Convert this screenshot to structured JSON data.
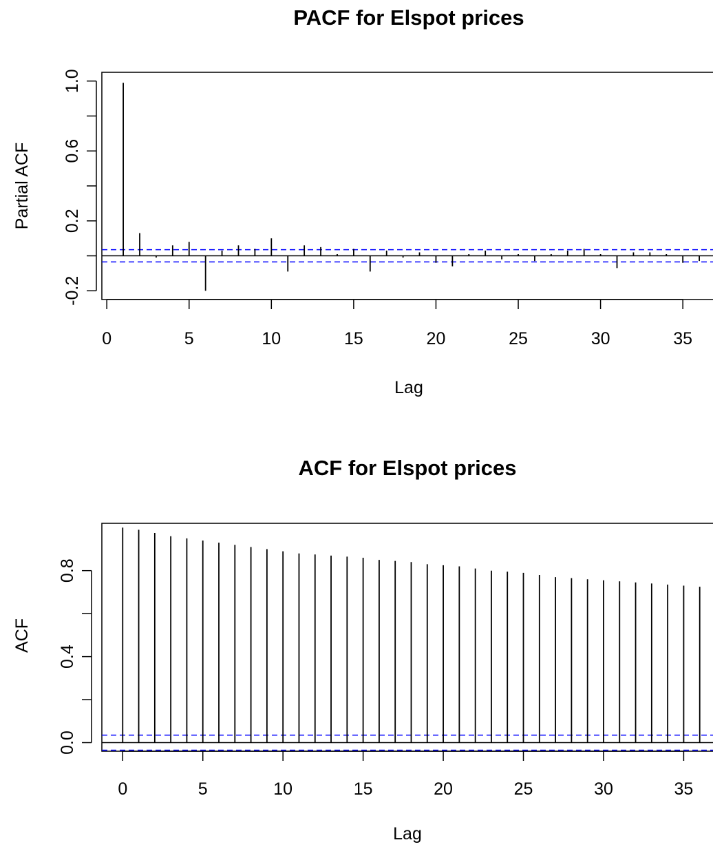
{
  "charts": {
    "pacf": {
      "title": "PACF for Elspot prices",
      "xlabel": "Lag",
      "ylabel": "Partial ACF",
      "x_ticks": [
        "0",
        "5",
        "10",
        "15",
        "20",
        "25",
        "30",
        "35"
      ],
      "y_ticks": [
        "-0.2",
        "0.2",
        "0.6",
        "1.0"
      ]
    },
    "acf": {
      "title": "ACF for Elspot prices",
      "xlabel": "Lag",
      "ylabel": "ACF",
      "x_ticks": [
        "0",
        "5",
        "10",
        "15",
        "20",
        "25",
        "30",
        "35"
      ],
      "y_ticks": [
        "0.0",
        "0.4",
        "0.8"
      ]
    }
  },
  "chart_data": [
    {
      "type": "bar",
      "style": "vertical spikes (R acf plot)",
      "title": "PACF for Elspot prices",
      "xlabel": "Lag",
      "ylabel": "Partial ACF",
      "xlim": [
        -0.3,
        37
      ],
      "ylim": [
        -0.25,
        1.05
      ],
      "x_ticks": [
        0,
        5,
        10,
        15,
        20,
        25,
        30,
        35
      ],
      "y_ticks": [
        -0.2,
        0.2,
        0.6,
        1.0
      ],
      "ci": 0.035,
      "ci_color": "#0000ff",
      "lags": [
        1,
        2,
        3,
        4,
        5,
        6,
        7,
        8,
        9,
        10,
        11,
        12,
        13,
        14,
        15,
        16,
        17,
        18,
        19,
        20,
        21,
        22,
        23,
        24,
        25,
        26,
        27,
        28,
        29,
        30,
        31,
        32,
        33,
        34,
        35,
        36
      ],
      "values": [
        0.99,
        0.13,
        -0.01,
        0.06,
        0.08,
        -0.2,
        0.03,
        0.06,
        0.04,
        0.1,
        -0.09,
        0.06,
        0.05,
        0.01,
        0.04,
        -0.09,
        0.03,
        -0.01,
        0.02,
        -0.04,
        -0.06,
        0.01,
        0.03,
        -0.02,
        0.01,
        -0.03,
        0.01,
        0.03,
        0.04,
        0.01,
        -0.07,
        0.02,
        0.02,
        0.01,
        -0.04,
        -0.03
      ]
    },
    {
      "type": "bar",
      "style": "vertical spikes (R acf plot)",
      "title": "ACF for Elspot prices",
      "xlabel": "Lag",
      "ylabel": "ACF",
      "xlim": [
        -1.3,
        37
      ],
      "ylim": [
        -0.04,
        1.02
      ],
      "x_ticks": [
        0,
        5,
        10,
        15,
        20,
        25,
        30,
        35
      ],
      "y_ticks": [
        0.0,
        0.4,
        0.8
      ],
      "ci": 0.035,
      "ci_color": "#0000ff",
      "lags": [
        0,
        1,
        2,
        3,
        4,
        5,
        6,
        7,
        8,
        9,
        10,
        11,
        12,
        13,
        14,
        15,
        16,
        17,
        18,
        19,
        20,
        21,
        22,
        23,
        24,
        25,
        26,
        27,
        28,
        29,
        30,
        31,
        32,
        33,
        34,
        35,
        36
      ],
      "values": [
        1.0,
        0.99,
        0.975,
        0.96,
        0.95,
        0.94,
        0.93,
        0.92,
        0.91,
        0.9,
        0.89,
        0.88,
        0.875,
        0.87,
        0.865,
        0.86,
        0.85,
        0.845,
        0.84,
        0.83,
        0.825,
        0.82,
        0.81,
        0.8,
        0.795,
        0.79,
        0.78,
        0.77,
        0.765,
        0.76,
        0.755,
        0.75,
        0.745,
        0.74,
        0.735,
        0.73,
        0.725
      ]
    }
  ]
}
